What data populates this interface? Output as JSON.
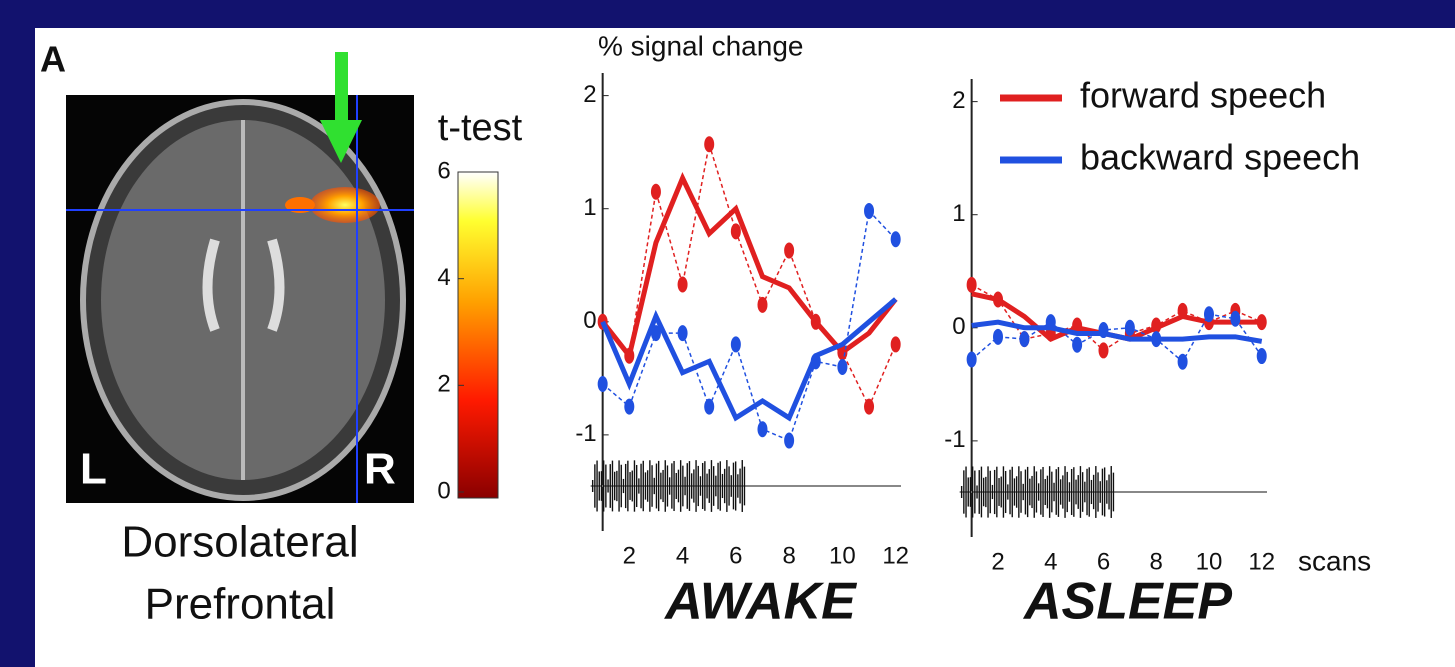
{
  "panel_label": "A",
  "brain": {
    "left_label": "L",
    "right_label": "R",
    "caption": [
      "Dorsolateral",
      "Prefrontal"
    ]
  },
  "colorbar": {
    "title": "t-test",
    "lim": [
      0,
      6
    ],
    "ticks": [
      0,
      2,
      4,
      6
    ]
  },
  "chart_data": [
    {
      "type": "line",
      "title": "AWAKE",
      "y_label": "% signal change",
      "xlim": [
        0.9,
        12.2
      ],
      "ylim": [
        -1.85,
        2.2
      ],
      "xticks": [
        2,
        4,
        6,
        8,
        10,
        12
      ],
      "yticks": [
        -1,
        0,
        1,
        2
      ],
      "x": [
        1,
        2,
        3,
        4,
        5,
        6,
        7,
        8,
        9,
        10,
        11,
        12
      ],
      "series": [
        {
          "color": "#e02020",
          "values": [
            0.0,
            -0.3,
            0.7,
            1.27,
            0.78,
            1.0,
            0.4,
            0.3,
            0.0,
            -0.27,
            -0.1,
            0.2
          ],
          "raw": [
            0.0,
            -0.3,
            1.15,
            0.33,
            1.57,
            0.8,
            0.15,
            0.63,
            0.0,
            -0.27,
            -0.75,
            -0.2
          ]
        },
        {
          "color": "#2050e0",
          "values": [
            0.0,
            -0.55,
            0.05,
            -0.45,
            -0.35,
            -0.85,
            -0.7,
            -0.85,
            -0.3,
            -0.2,
            0.0,
            0.2
          ],
          "raw": [
            -0.55,
            -0.75,
            -0.1,
            -0.1,
            -0.75,
            -0.2,
            -0.95,
            -1.05,
            -0.35,
            -0.4,
            0.98,
            0.73
          ]
        }
      ]
    },
    {
      "type": "line",
      "title": "ASLEEP",
      "x_label": "scans",
      "xlim": [
        0.9,
        12.2
      ],
      "ylim": [
        -1.85,
        2.2
      ],
      "xticks": [
        2,
        4,
        6,
        8,
        10,
        12
      ],
      "yticks": [
        -1,
        0,
        1,
        2
      ],
      "x": [
        1,
        2,
        3,
        4,
        5,
        6,
        7,
        8,
        9,
        10,
        11,
        12
      ],
      "series": [
        {
          "name": "forward speech",
          "color": "#e02020",
          "values": [
            0.3,
            0.25,
            0.1,
            -0.1,
            0.0,
            -0.05,
            -0.1,
            0.0,
            0.1,
            0.05,
            0.05,
            0.05
          ],
          "raw": [
            0.38,
            0.25,
            -0.1,
            -0.05,
            0.02,
            -0.2,
            -0.05,
            0.02,
            0.15,
            0.05,
            0.15,
            0.05
          ]
        },
        {
          "name": "backward speech",
          "color": "#2050e0",
          "values": [
            0.02,
            0.05,
            0.0,
            0.0,
            -0.05,
            -0.05,
            -0.1,
            -0.1,
            -0.1,
            -0.08,
            -0.08,
            -0.12
          ],
          "raw": [
            -0.28,
            -0.08,
            -0.1,
            0.05,
            -0.15,
            -0.02,
            0.0,
            -0.1,
            -0.3,
            0.12,
            0.08,
            -0.25
          ]
        }
      ]
    }
  ]
}
